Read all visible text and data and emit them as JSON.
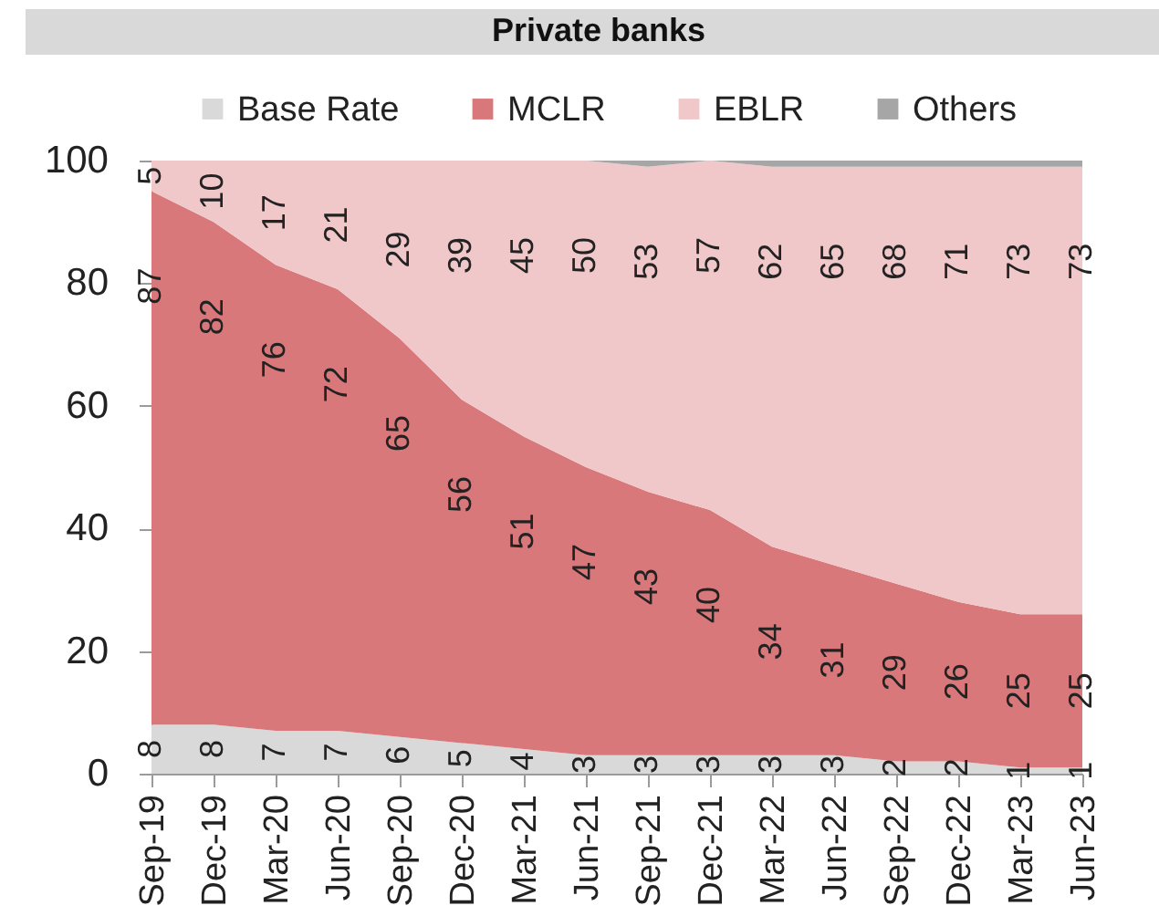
{
  "chart_data": {
    "type": "area",
    "title": "Private banks",
    "categories": [
      "Sep-19",
      "Dec-19",
      "Mar-20",
      "Jun-20",
      "Sep-20",
      "Dec-20",
      "Mar-21",
      "Jun-21",
      "Sep-21",
      "Dec-21",
      "Mar-22",
      "Jun-22",
      "Sep-22",
      "Dec-22",
      "Mar-23",
      "Jun-23"
    ],
    "stacked": true,
    "ylim": [
      0,
      100
    ],
    "yticks": [
      0,
      20,
      40,
      60,
      80,
      100
    ],
    "grid": false,
    "legend": "top",
    "series": [
      {
        "name": "Base Rate",
        "color": "#d9d9d9",
        "values": [
          8,
          8,
          7,
          7,
          6,
          5,
          4,
          3,
          3,
          3,
          3,
          3,
          2,
          2,
          1,
          1
        ],
        "value_labels": [
          "8",
          "8",
          "7",
          "7",
          "6",
          "5",
          "4",
          "3",
          "3",
          "3",
          "3",
          "3",
          "2",
          "2",
          "1",
          "1"
        ]
      },
      {
        "name": "MCLR",
        "color": "#d9787a",
        "values": [
          87,
          82,
          76,
          72,
          65,
          56,
          51,
          47,
          43,
          40,
          34,
          31,
          29,
          26,
          25,
          25
        ],
        "value_labels": [
          "87",
          "82",
          "76",
          "72",
          "65",
          "56",
          "51",
          "47",
          "43",
          "40",
          "34",
          "31",
          "29",
          "26",
          "25",
          "25"
        ]
      },
      {
        "name": "EBLR",
        "color": "#f0c8c9",
        "values": [
          5,
          10,
          17,
          21,
          29,
          39,
          45,
          50,
          53,
          57,
          62,
          65,
          68,
          71,
          73,
          73
        ],
        "value_labels": [
          "5",
          "10",
          "17",
          "21",
          "29",
          "39",
          "45",
          "50",
          "53",
          "57",
          "62",
          "65",
          "68",
          "71",
          "73",
          "73"
        ]
      },
      {
        "name": "Others",
        "color": "#a6a6a6",
        "values": [
          0,
          0,
          0,
          0,
          0,
          0,
          0,
          0,
          1,
          0,
          1,
          1,
          1,
          1,
          1,
          1
        ]
      }
    ]
  }
}
